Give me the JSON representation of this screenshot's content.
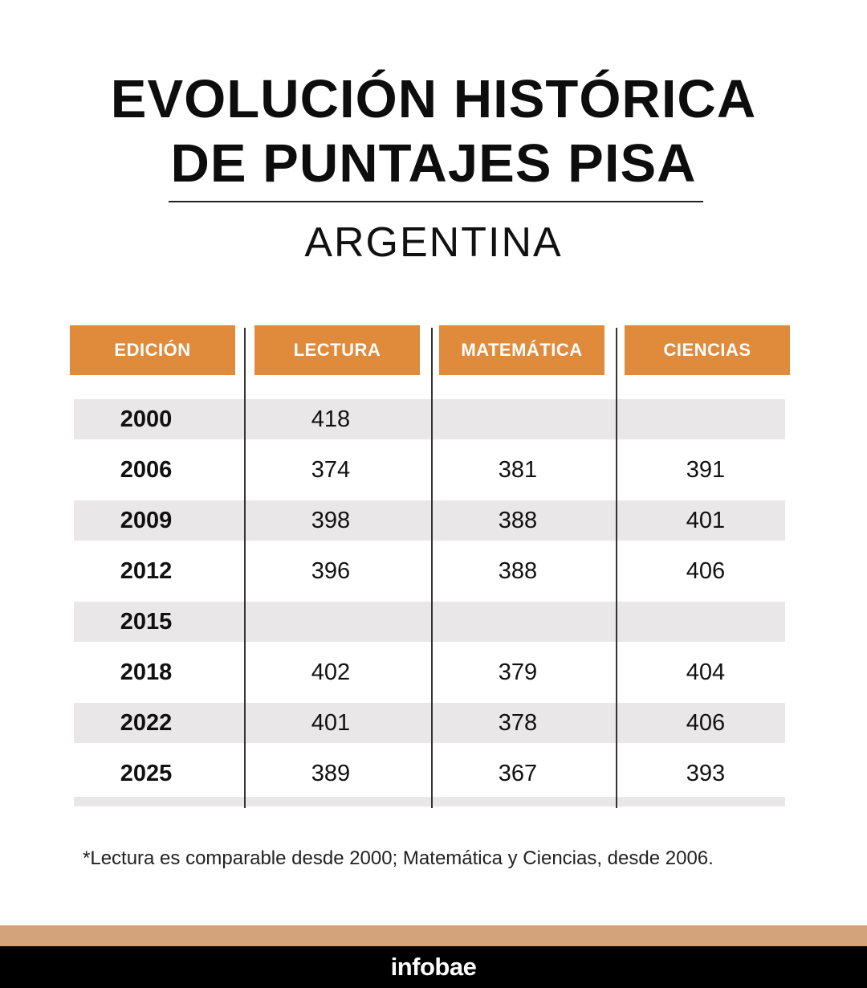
{
  "title": {
    "line1": "EVOLUCIÓN HISTÓRICA",
    "line2": "DE PUNTAJES PISA"
  },
  "subtitle": "ARGENTINA",
  "table": {
    "headers": [
      "EDICIÓN",
      "LECTURA",
      "MATEMÁTICA",
      "CIENCIAS"
    ],
    "rows": [
      {
        "edicion": "2000",
        "lectura": "418",
        "matematica": "",
        "ciencias": ""
      },
      {
        "edicion": "2006",
        "lectura": "374",
        "matematica": "381",
        "ciencias": "391"
      },
      {
        "edicion": "2009",
        "lectura": "398",
        "matematica": "388",
        "ciencias": "401"
      },
      {
        "edicion": "2012",
        "lectura": "396",
        "matematica": "388",
        "ciencias": "406"
      },
      {
        "edicion": "2015",
        "lectura": "",
        "matematica": "",
        "ciencias": ""
      },
      {
        "edicion": "2018",
        "lectura": "402",
        "matematica": "379",
        "ciencias": "404"
      },
      {
        "edicion": "2022",
        "lectura": "401",
        "matematica": "378",
        "ciencias": "406"
      },
      {
        "edicion": "2025",
        "lectura": "389",
        "matematica": "367",
        "ciencias": "393"
      }
    ]
  },
  "footnote": "*Lectura es comparable desde 2000; Matemática y Ciencias, desde 2006.",
  "brand": "infobae",
  "colors": {
    "header_bg": "#e08a3c",
    "row_shade": "#e9e7e8",
    "footer_tan": "#d3a47c",
    "footer_black": "#000000"
  }
}
